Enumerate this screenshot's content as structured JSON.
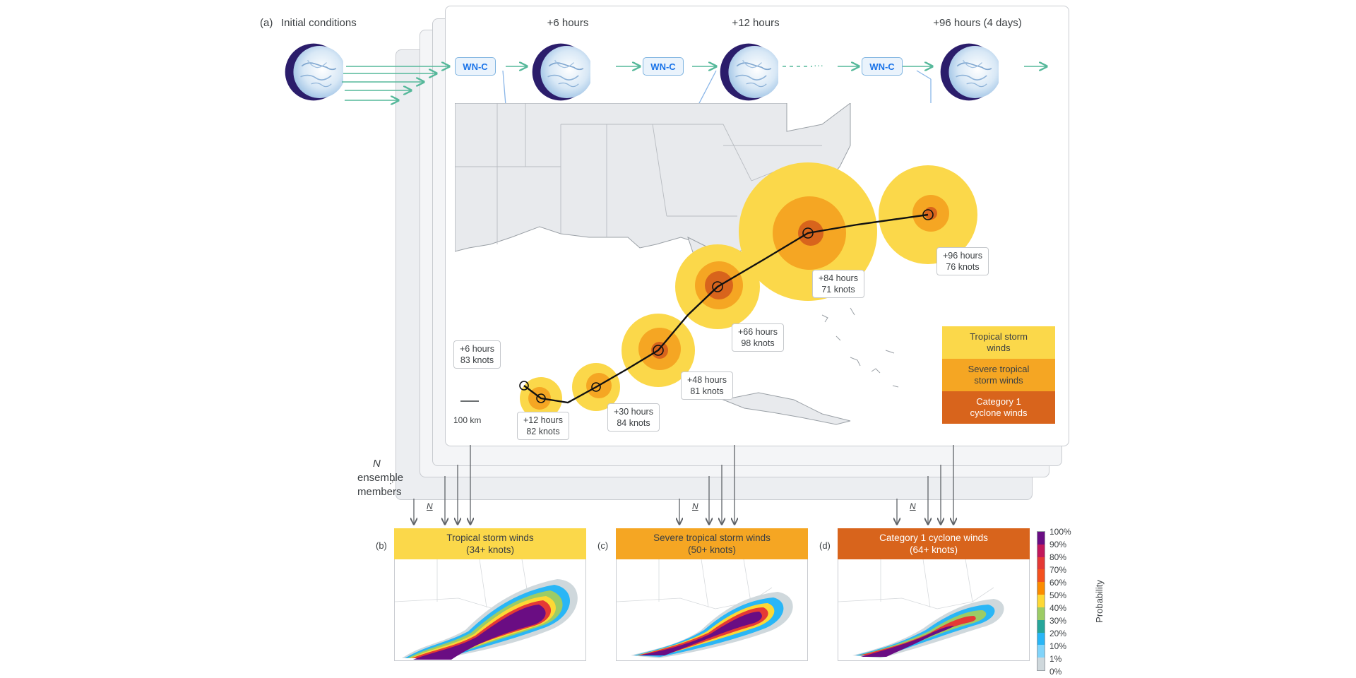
{
  "panel_a": {
    "letter": "(a)",
    "initial_label": "Initial conditions",
    "steps": [
      "+6 hours",
      "+12 hours",
      "+96 hours (4 days)"
    ],
    "model_label": "WN-C",
    "ellipsis": "···",
    "ensemble": {
      "n": "N",
      "line1": "ensemble",
      "line2": "members",
      "dots": "..."
    },
    "split_label": "N",
    "scale_label": "100 km"
  },
  "storm_points": [
    {
      "time": "+6 hours",
      "wind": "83 knots"
    },
    {
      "time": "+12 hours",
      "wind": "82 knots"
    },
    {
      "time": "+30 hours",
      "wind": "84 knots"
    },
    {
      "time": "+48 hours",
      "wind": "81 knots"
    },
    {
      "time": "+66 hours",
      "wind": "98 knots"
    },
    {
      "time": "+84 hours",
      "wind": "71 knots"
    },
    {
      "time": "+96 hours",
      "wind": "76 knots"
    }
  ],
  "legend": [
    {
      "line1": "Tropical storm",
      "line2": "winds",
      "color": "#fbd84a"
    },
    {
      "line1": "Severe tropical",
      "line2": "storm winds",
      "color": "#f5a623"
    },
    {
      "line1": "Category 1",
      "line2": "cyclone winds",
      "color": "#d8641c"
    }
  ],
  "panels": [
    {
      "letter": "(b)",
      "title": "Tropical storm winds",
      "subtitle": "(34+ knots)",
      "color": "#fbd84a"
    },
    {
      "letter": "(c)",
      "title": "Severe tropical storm winds",
      "subtitle": "(50+ knots)",
      "color": "#f5a623"
    },
    {
      "letter": "(d)",
      "title": "Category 1 cyclone winds",
      "subtitle": "(64+ knots)",
      "color": "#d8641c"
    }
  ],
  "colorbar": {
    "label": "Probability",
    "ticks": [
      "100%",
      "90%",
      "80%",
      "70%",
      "60%",
      "50%",
      "40%",
      "30%",
      "20%",
      "10%",
      "1%",
      "0%"
    ],
    "colors": [
      "#6a0d83",
      "#c2185b",
      "#e53935",
      "#f4511e",
      "#fb8c00",
      "#fdd835",
      "#9ccc65",
      "#26a69a",
      "#29b6f6",
      "#81d4fa",
      "#cfd8dc"
    ]
  },
  "colors": {
    "tropical": "#fbd84a",
    "severe": "#f5a623",
    "category1": "#d8641c",
    "arrow": "#55b89a",
    "link": "#8ab6e8"
  }
}
